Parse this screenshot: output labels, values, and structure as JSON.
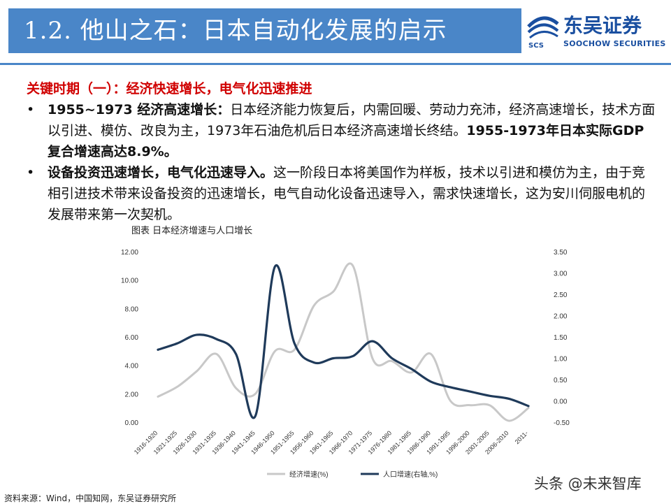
{
  "header": {
    "title": "1.2. 他山之石：日本自动化发展的启示",
    "logo_cn": "东吴证券",
    "logo_en": "SOOCHOW SECURITIES",
    "logo_mark": "SCS",
    "colors": {
      "bar": "#4a86c8",
      "logo": "#1a4fa0"
    }
  },
  "content": {
    "subtitle": "关键时期（一）：经济快速增长，电气化迅速推进",
    "bullet_symbol": "•",
    "bullets": [
      {
        "bold_lead": "1955~1973 经济高速增长：",
        "text": "日本经济能力恢复后，内需回暖、劳动力充沛，经济高速增长，技术方面以引进、模仿、改良为主，1973年石油危机后日本经济高速增长终结。",
        "bold_tail": "1955-1973年日本实际GDP复合增速高达8.9%。"
      },
      {
        "bold_lead": "设备投资迅速增长，电气化迅速导入。",
        "text": "这一阶段日本将美国作为样板，技术以引进和模仿为主，由于竞相引进技术带来设备投资的迅速增长，电气自动化设备迅速导入，需求快速增长，这为安川伺服电机的发展带来第一次契机。"
      }
    ]
  },
  "chart_caption": "图表  日本经济增速与人口增长",
  "chart_data": {
    "type": "line",
    "title": "",
    "categories": [
      "1916-1920",
      "1921-1925",
      "1926-1930",
      "1931-1935",
      "1936-1940",
      "1941-1945",
      "1946-1950",
      "1951-1955",
      "1956-1960",
      "1961-1965",
      "1966-1970",
      "1971-1975",
      "1976-1980",
      "1981-1985",
      "1986-1990",
      "1991-1995",
      "1996-2000",
      "2001-2005",
      "2006-2010",
      "2011-"
    ],
    "y_left": {
      "min": 0,
      "max": 12,
      "ticks": [
        "0.00",
        "2.00",
        "4.00",
        "6.00",
        "8.00",
        "10.00",
        "12.00"
      ]
    },
    "y_right": {
      "min": -0.5,
      "max": 3.5,
      "ticks": [
        "-0.50",
        "0.00",
        "0.50",
        "1.00",
        "1.50",
        "2.00",
        "2.50",
        "3.00",
        "3.50"
      ]
    },
    "series": [
      {
        "name": "经济增速(%)",
        "axis": "left",
        "color": "#c8c8c8",
        "values": [
          1.8,
          2.5,
          3.6,
          4.8,
          2.4,
          2.0,
          5.0,
          5.1,
          8.2,
          9.2,
          11.0,
          4.5,
          4.3,
          3.5,
          4.8,
          1.5,
          1.2,
          1.2,
          0.1,
          1.0
        ]
      },
      {
        "name": "人口增速(右轴,%)",
        "axis": "right",
        "color": "#1f3a5a",
        "values": [
          1.2,
          1.35,
          1.55,
          1.45,
          1.1,
          -0.35,
          3.15,
          1.35,
          0.9,
          1.0,
          1.05,
          1.4,
          1.0,
          0.75,
          0.45,
          0.32,
          0.22,
          0.12,
          0.05,
          -0.12
        ]
      }
    ],
    "legend_position": "bottom",
    "grid": false
  },
  "footer": {
    "source": "资料来源：Wind，中国知网，东吴证券研究所",
    "watermark": "头条 @未来智库"
  }
}
